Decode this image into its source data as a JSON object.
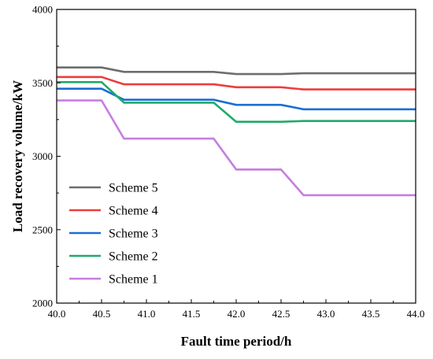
{
  "chart_data": {
    "type": "line",
    "title": "",
    "xlabel": "Fault time period/h",
    "ylabel": "Load recovery volume/kW",
    "xlim": [
      40.0,
      44.0
    ],
    "ylim": [
      2000,
      4000
    ],
    "xticks": [
      "40.0",
      "40.5",
      "41.0",
      "41.5",
      "42.0",
      "42.5",
      "43.0",
      "43.5",
      "44.0"
    ],
    "yticks": [
      "2000",
      "2500",
      "3000",
      "3500",
      "4000"
    ],
    "grid": false,
    "legend_position": "lower-left",
    "x": [
      40.0,
      40.5,
      40.75,
      41.75,
      42.0,
      42.5,
      42.75,
      44.0
    ],
    "series": [
      {
        "name": "Scheme 5",
        "color": "#6e6e6e",
        "values": [
          3605,
          3605,
          3575,
          3575,
          3560,
          3560,
          3565,
          3565
        ]
      },
      {
        "name": "Scheme 4",
        "color": "#ef3c3c",
        "values": [
          3540,
          3540,
          3490,
          3490,
          3470,
          3470,
          3455,
          3455
        ]
      },
      {
        "name": "Scheme 3",
        "color": "#1b6fd1",
        "values": [
          3460,
          3460,
          3385,
          3385,
          3350,
          3350,
          3320,
          3320
        ]
      },
      {
        "name": "Scheme 2",
        "color": "#21a96b",
        "values": [
          3505,
          3505,
          3365,
          3365,
          3235,
          3235,
          3240,
          3240
        ]
      },
      {
        "name": "Scheme 1",
        "color": "#c77ce0",
        "values": [
          3380,
          3380,
          3120,
          3120,
          2910,
          2910,
          2735,
          2735
        ]
      }
    ]
  }
}
